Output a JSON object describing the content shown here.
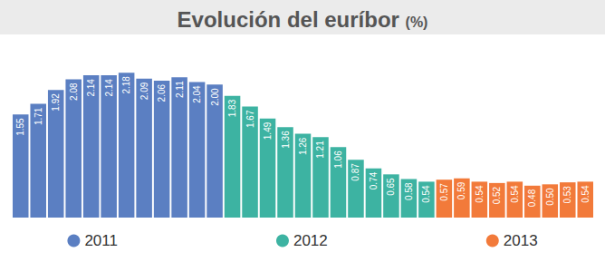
{
  "chart_data": {
    "type": "bar",
    "title": "Evolución del euríbor (%)",
    "categories": [
      null,
      null,
      null,
      null,
      null,
      null,
      null,
      null,
      null,
      null,
      null,
      null,
      null,
      null,
      null,
      null,
      null,
      null,
      null,
      null,
      null,
      null,
      null,
      null,
      null,
      null,
      null,
      null,
      null,
      null,
      null,
      null,
      null
    ],
    "series": [
      {
        "name": "2011",
        "color": "#5b7fc2",
        "values": [
          1.55,
          1.71,
          1.92,
          2.08,
          2.14,
          2.14,
          2.18,
          2.09,
          2.06,
          2.11,
          2.04,
          2.0,
          null,
          null,
          null,
          null,
          null,
          null,
          null,
          null,
          null,
          null,
          null,
          null,
          null,
          null,
          null,
          null,
          null,
          null,
          null,
          null,
          null
        ],
        "value_labels": [
          "1.55",
          "1.71",
          "1.92",
          "2.08",
          "2.14",
          "2.14",
          "2.18",
          "2.09",
          "2.06",
          "2.11",
          "2.04",
          "2.00",
          null,
          null,
          null,
          null,
          null,
          null,
          null,
          null,
          null,
          null,
          null,
          null,
          null,
          null,
          null,
          null,
          null,
          null,
          null,
          null,
          null
        ]
      },
      {
        "name": "2012",
        "color": "#3db3a2",
        "values": [
          null,
          null,
          null,
          null,
          null,
          null,
          null,
          null,
          null,
          null,
          null,
          null,
          1.83,
          1.67,
          1.49,
          1.36,
          1.26,
          1.21,
          1.06,
          0.87,
          0.74,
          0.65,
          0.58,
          0.54,
          null,
          null,
          null,
          null,
          null,
          null,
          null,
          null,
          null
        ],
        "value_labels": [
          null,
          null,
          null,
          null,
          null,
          null,
          null,
          null,
          null,
          null,
          null,
          null,
          "1.83",
          "1.67",
          "1.49",
          "1.36",
          "1.26",
          "1.21",
          "1.06",
          "0.87",
          "0.74",
          "0.65",
          "0.58",
          "0.54",
          null,
          null,
          null,
          null,
          null,
          null,
          null,
          null,
          null
        ]
      },
      {
        "name": "2013",
        "color": "#f27a3a",
        "values": [
          null,
          null,
          null,
          null,
          null,
          null,
          null,
          null,
          null,
          null,
          null,
          null,
          null,
          null,
          null,
          null,
          null,
          null,
          null,
          null,
          null,
          null,
          null,
          null,
          0.57,
          0.59,
          0.54,
          0.52,
          0.54,
          0.48,
          0.5,
          0.53,
          0.54
        ],
        "value_labels": [
          null,
          null,
          null,
          null,
          null,
          null,
          null,
          null,
          null,
          null,
          null,
          null,
          null,
          null,
          null,
          null,
          null,
          null,
          null,
          null,
          null,
          null,
          null,
          null,
          "0.57",
          "0.59",
          "0.54",
          "0.52",
          "0.54",
          "0.48",
          "0.50",
          "0.53",
          "0.54"
        ]
      }
    ],
    "ylim": [
      0,
      2.7
    ],
    "grid": false,
    "legend": "bottom",
    "data_labels": true,
    "tick_labels": false
  }
}
